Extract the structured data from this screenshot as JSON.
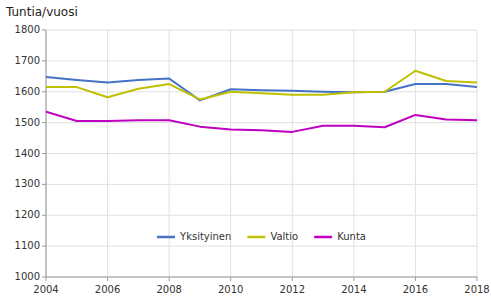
{
  "chart_data": {
    "type": "line",
    "ylabel": "Tuntia/vuosi",
    "x": [
      2004,
      2005,
      2006,
      2007,
      2008,
      2009,
      2010,
      2011,
      2012,
      2013,
      2014,
      2015,
      2016,
      2017,
      2018
    ],
    "series": [
      {
        "name": "Yksityinen",
        "color": "#4472C4",
        "values": [
          1648,
          1638,
          1630,
          1638,
          1643,
          1572,
          1608,
          1605,
          1603,
          1600,
          1598,
          1600,
          1625,
          1625,
          1615
        ]
      },
      {
        "name": "Valtio",
        "color": "#C0C000",
        "values": [
          1615,
          1615,
          1582,
          1610,
          1625,
          1575,
          1600,
          1595,
          1590,
          1590,
          1598,
          1600,
          1668,
          1635,
          1630
        ]
      },
      {
        "name": "Kunta",
        "color": "#C000C0",
        "values": [
          1535,
          1505,
          1505,
          1508,
          1508,
          1487,
          1478,
          1475,
          1470,
          1490,
          1490,
          1485,
          1525,
          1510,
          1508
        ]
      }
    ],
    "xlim": [
      2004,
      2018
    ],
    "xticks": [
      2004,
      2006,
      2008,
      2010,
      2012,
      2014,
      2016,
      2018
    ],
    "ylim": [
      1000,
      1800
    ],
    "yticks": [
      1000,
      1100,
      1200,
      1300,
      1400,
      1500,
      1600,
      1700,
      1800
    ],
    "grid": true,
    "legend": "bottom"
  }
}
